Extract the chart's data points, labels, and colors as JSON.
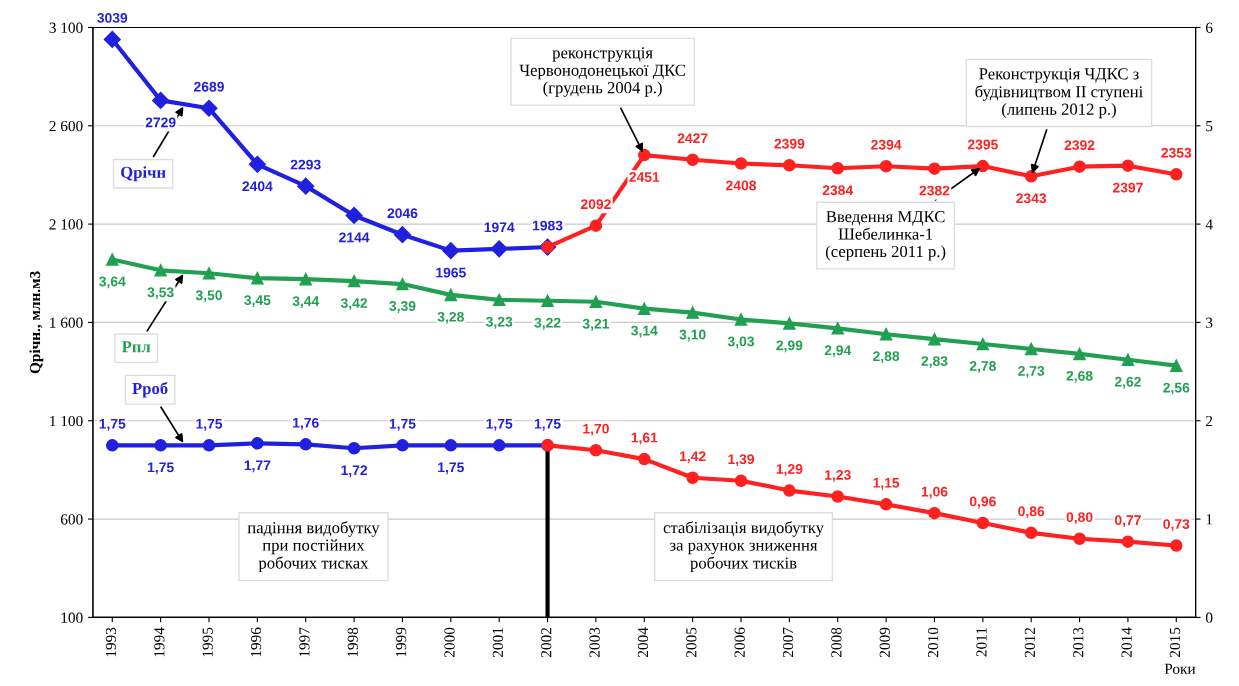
{
  "chart_data": {
    "type": "line",
    "ylabel": "Qрічн., млн.м3",
    "xlabel": "Роки",
    "categories": [
      "1993",
      "1994",
      "1995",
      "1996",
      "1997",
      "1998",
      "1999",
      "2000",
      "2001",
      "2002",
      "2003",
      "2004",
      "2005",
      "2006",
      "2007",
      "2008",
      "2009",
      "2010",
      "2011",
      "2012",
      "2013",
      "2014",
      "2015"
    ],
    "ylim": [
      100,
      3100
    ],
    "yticks": [
      100,
      600,
      {
        "value": 1100,
        "label": "1 100"
      },
      {
        "value": 1600,
        "label": "1 600"
      },
      {
        "value": 2100,
        "label": "2 100"
      },
      {
        "value": 2600,
        "label": "2 600"
      },
      {
        "value": 3100,
        "label": "3 100"
      }
    ],
    "y2lim": [
      0,
      6
    ],
    "y2ticks": [
      0,
      1,
      2,
      3,
      4,
      5,
      6
    ],
    "grid": "y",
    "legend": false,
    "line_style": "solid",
    "series": [
      {
        "name": "Qрічн",
        "color": "#2020e0",
        "marker": "diamond",
        "values": [
          3039,
          2729,
          2689,
          2404,
          2293,
          2144,
          2046,
          1965,
          1974,
          1983,
          null,
          null,
          null,
          null,
          null,
          null,
          null,
          null,
          null,
          null,
          null,
          null,
          null
        ],
        "value_labels": [
          "3039",
          "2729",
          "2689",
          "2404",
          "2293",
          "2144",
          "2046",
          "1965",
          "1974",
          "1983",
          null,
          null,
          null,
          null,
          null,
          null,
          null,
          null,
          null,
          null,
          null,
          null,
          null
        ]
      },
      {
        "color": "#ff2020",
        "marker": "circle",
        "values": [
          null,
          null,
          null,
          null,
          null,
          null,
          null,
          null,
          null,
          1983,
          2092,
          2451,
          2427,
          2408,
          2399,
          2384,
          2394,
          2382,
          2395,
          2343,
          2392,
          2397,
          2353
        ],
        "value_labels": [
          null,
          null,
          null,
          null,
          null,
          null,
          null,
          null,
          null,
          null,
          "2092",
          "2451",
          "2427",
          "2408",
          "2399",
          "2384",
          "2394",
          "2382",
          "2395",
          "2343",
          "2392",
          "2397",
          "2353"
        ]
      },
      {
        "name": "Рпл",
        "color": "#20a050",
        "marker": "triangle",
        "axis": "y2",
        "values": [
          3.64,
          3.53,
          3.5,
          3.45,
          3.44,
          3.42,
          3.39,
          3.28,
          3.23,
          3.22,
          3.21,
          3.14,
          3.1,
          3.03,
          2.99,
          2.94,
          2.88,
          2.83,
          2.78,
          2.73,
          2.68,
          2.62,
          2.56
        ],
        "value_labels": [
          "3,64",
          "3,53",
          "3,50",
          "3,45",
          "3,44",
          "3,42",
          "3,39",
          "3,28",
          "3,23",
          "3,22",
          "3,21",
          "3,14",
          "3,10",
          "3,03",
          "2,99",
          "2,94",
          "2,88",
          "2,83",
          "2,78",
          "2,73",
          "2,68",
          "2,62",
          "2,56"
        ]
      },
      {
        "name": "Рроб",
        "color": "#2020e0",
        "marker": "circle",
        "axis": "y2",
        "values": [
          1.75,
          1.75,
          1.75,
          1.77,
          1.76,
          1.72,
          1.75,
          1.75,
          1.75,
          1.75,
          null,
          null,
          null,
          null,
          null,
          null,
          null,
          null,
          null,
          null,
          null,
          null,
          null
        ],
        "value_labels": [
          "1,75",
          "1,75",
          "1,75",
          "1,77",
          "1,76",
          "1,72",
          "1,75",
          "1,75",
          "1,75",
          "1,75",
          null,
          null,
          null,
          null,
          null,
          null,
          null,
          null,
          null,
          null,
          null,
          null,
          null
        ]
      },
      {
        "color": "#ff2020",
        "marker": "circle",
        "axis": "y2",
        "values": [
          null,
          null,
          null,
          null,
          null,
          null,
          null,
          null,
          null,
          1.75,
          1.7,
          1.61,
          1.42,
          1.39,
          1.29,
          1.23,
          1.15,
          1.06,
          0.96,
          0.86,
          0.8,
          0.77,
          0.73
        ],
        "value_labels": [
          null,
          null,
          null,
          null,
          null,
          null,
          null,
          null,
          null,
          null,
          "1,70",
          "1,61",
          "1,42",
          "1,39",
          "1,29",
          "1,23",
          "1,15",
          "1,06",
          "0,96",
          "0,86",
          "0,80",
          "0,77",
          "0,73"
        ]
      }
    ],
    "ref_lines": [
      {
        "axis": "x",
        "value": "2002",
        "color": "#000000"
      }
    ],
    "annotations": [
      {
        "text": "реконструкція\nЧервонодонецької ДКС\n(грудень 2004 р.)",
        "x": "2004",
        "y": 2451
      },
      {
        "text": "Реконструкція ЧДКС з\nбудівництвом ІІ ступені\n(липень 2012 р.)",
        "x": "2012",
        "y": 2343
      },
      {
        "text": "Введення МДКС\nШебелинка-1\n(серпень 2011 р.)",
        "x": "2011",
        "y": 2395
      },
      "падіння видобутку\nпри постійних\nробочих тисках",
      "стабілізація видобутку\nза рахунок зниження\nробочих тисків"
    ]
  }
}
